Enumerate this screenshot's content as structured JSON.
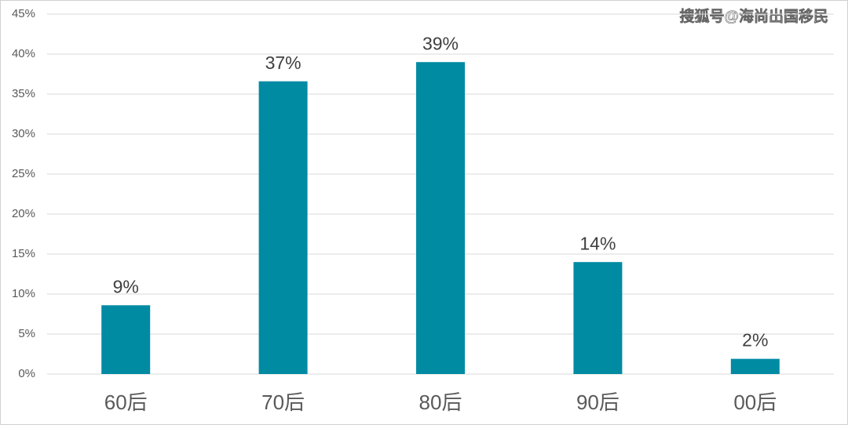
{
  "chart_data": {
    "type": "bar",
    "categories": [
      "60后",
      "70后",
      "80后",
      "90后",
      "00后"
    ],
    "values": [
      8.6,
      36.6,
      39.0,
      14.0,
      1.9
    ],
    "value_labels": [
      "9%",
      "37%",
      "39%",
      "14%",
      "2%"
    ],
    "color": "#008ba3",
    "ylim": [
      0,
      45
    ],
    "yticks": [
      {
        "value": 0,
        "label": "0%"
      },
      {
        "value": 5,
        "label": "5%"
      },
      {
        "value": 10,
        "label": "10%"
      },
      {
        "value": 15,
        "label": "15%"
      },
      {
        "value": 20,
        "label": "20%"
      },
      {
        "value": 25,
        "label": "25%"
      },
      {
        "value": 30,
        "label": "30%"
      },
      {
        "value": 35,
        "label": "35%"
      },
      {
        "value": 40,
        "label": "40%"
      },
      {
        "value": 45,
        "label": "45%"
      }
    ],
    "grid": true,
    "watermark": "搜狐号@海尚出国移民"
  }
}
